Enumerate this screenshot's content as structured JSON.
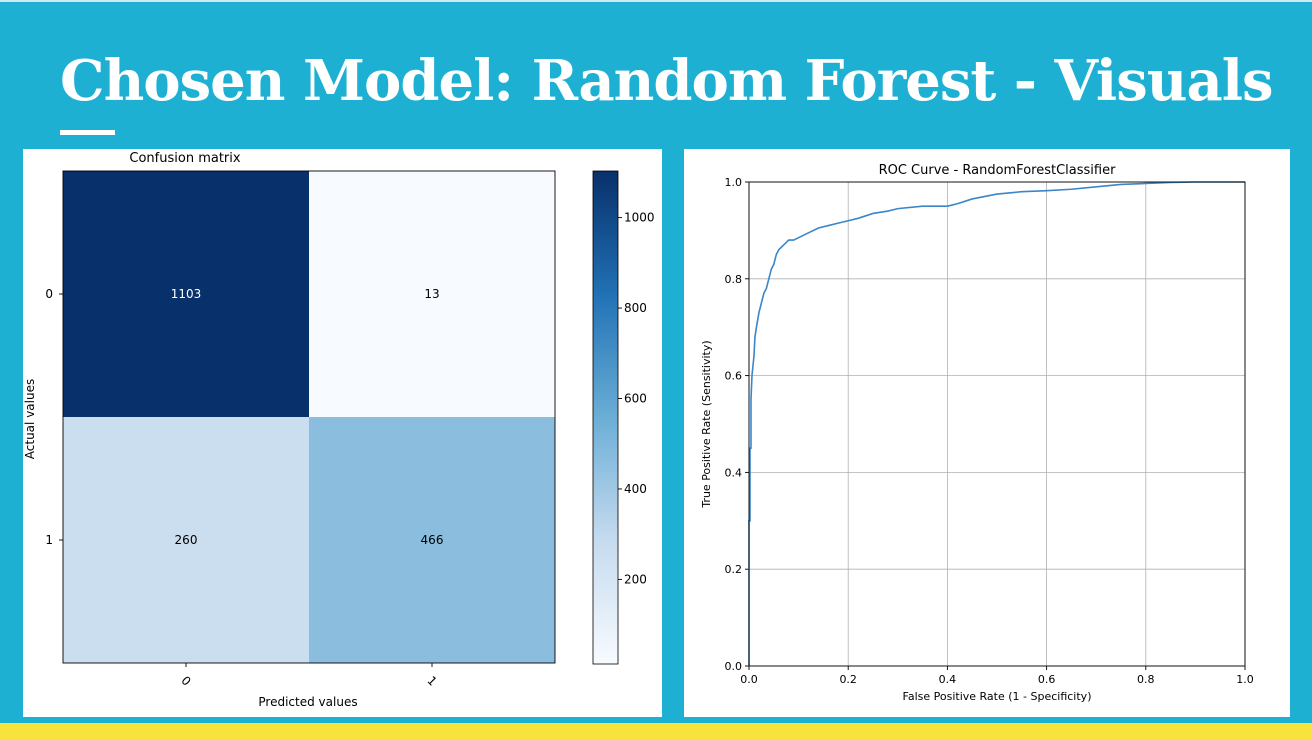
{
  "slide": {
    "title": "Chosen Model:  Random Forest - Visuals"
  },
  "colors": {
    "background": "#1eb0d2",
    "accent_bar": "#f7e33b",
    "roc_line": "#3a86c8"
  },
  "chart_data": [
    {
      "type": "heatmap",
      "title": "Confusion matrix",
      "xlabel": "Predicted values",
      "ylabel": "Actual values",
      "x_tick_labels": [
        "0",
        "1"
      ],
      "y_tick_labels": [
        "0",
        "1"
      ],
      "matrix": [
        [
          1103,
          13
        ],
        [
          260,
          466
        ]
      ],
      "cell_labels": [
        [
          "1103",
          "13"
        ],
        [
          "260",
          "466"
        ]
      ],
      "colormap": "Blues",
      "colorbar": {
        "range": [
          13,
          1103
        ],
        "ticks": [
          200,
          400,
          600,
          800,
          1000
        ],
        "tick_labels": [
          "200",
          "400",
          "600",
          "800",
          "1000"
        ]
      }
    },
    {
      "type": "line",
      "title": "ROC Curve - RandomForestClassifier",
      "xlabel": "False Positive Rate (1 - Specificity)",
      "ylabel": "True Positive Rate (Sensitivity)",
      "xlim": [
        0.0,
        1.0
      ],
      "ylim": [
        0.0,
        1.0
      ],
      "x_ticks": [
        "0.0",
        "0.2",
        "0.4",
        "0.6",
        "0.8",
        "1.0"
      ],
      "y_ticks": [
        "0.0",
        "0.2",
        "0.4",
        "0.6",
        "0.8",
        "1.0"
      ],
      "grid": true,
      "series": [
        {
          "x": [
            0.0,
            0.0,
            0.002,
            0.002,
            0.004,
            0.004,
            0.006,
            0.008,
            0.01,
            0.012,
            0.015,
            0.02,
            0.025,
            0.03,
            0.035,
            0.04,
            0.045,
            0.05,
            0.055,
            0.06,
            0.07,
            0.08,
            0.09,
            0.1,
            0.12,
            0.14,
            0.16,
            0.18,
            0.2,
            0.22,
            0.25,
            0.28,
            0.3,
            0.35,
            0.4,
            0.42,
            0.45,
            0.5,
            0.55,
            0.6,
            0.65,
            0.7,
            0.75,
            0.8,
            0.85,
            0.9,
            0.95,
            1.0
          ],
          "y": [
            0.0,
            0.3,
            0.3,
            0.45,
            0.45,
            0.55,
            0.6,
            0.62,
            0.64,
            0.68,
            0.7,
            0.73,
            0.75,
            0.77,
            0.78,
            0.8,
            0.82,
            0.83,
            0.85,
            0.86,
            0.87,
            0.88,
            0.88,
            0.885,
            0.895,
            0.905,
            0.91,
            0.915,
            0.92,
            0.925,
            0.935,
            0.94,
            0.945,
            0.95,
            0.95,
            0.955,
            0.965,
            0.975,
            0.98,
            0.982,
            0.985,
            0.99,
            0.995,
            0.997,
            0.999,
            1.0,
            1.0,
            1.0
          ]
        }
      ]
    }
  ]
}
